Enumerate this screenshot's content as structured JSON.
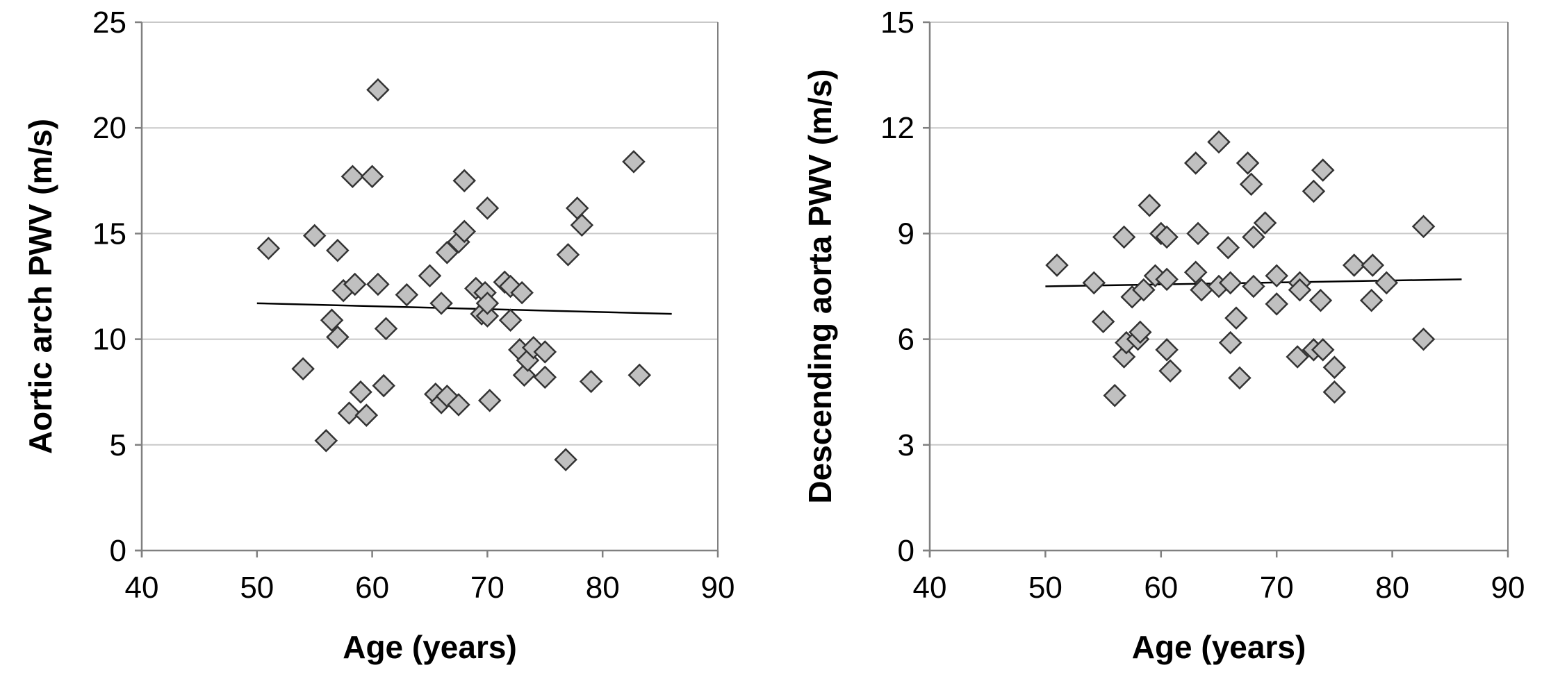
{
  "chart_data": [
    {
      "type": "scatter",
      "xlabel": "Age (years)",
      "ylabel": "Aortic arch PWV (m/s)",
      "xlim": [
        40,
        90
      ],
      "ylim": [
        0,
        25
      ],
      "xticks": [
        40,
        50,
        60,
        70,
        80,
        90
      ],
      "yticks": [
        0,
        5,
        10,
        15,
        20,
        25
      ],
      "grid": "horizontal",
      "colors": {
        "marker_fill": "#c0c0c0",
        "marker_edge": "#333333",
        "gridline": "#c8c8c8",
        "axis": "#808080",
        "trendline": "#000000"
      },
      "x": [
        51,
        54,
        55,
        56,
        56.5,
        57,
        57,
        57.5,
        58,
        58.3,
        58.5,
        59,
        59.5,
        60,
        60.5,
        60.5,
        61,
        61.2,
        63,
        65,
        65.5,
        66,
        66,
        66.5,
        66.5,
        67.5,
        67.5,
        68,
        68,
        69,
        69.5,
        69.8,
        70,
        70,
        70,
        70.2,
        71.5,
        72,
        72,
        72.8,
        73,
        73.2,
        73.5,
        74,
        75,
        75,
        76.8,
        77,
        77.8,
        78.2,
        79,
        82.7,
        83.2
      ],
      "y": [
        14.3,
        8.6,
        14.9,
        5.2,
        10.9,
        14.2,
        10.1,
        12.3,
        6.5,
        17.7,
        12.6,
        7.5,
        6.4,
        17.7,
        12.6,
        21.8,
        7.8,
        10.5,
        12.1,
        13.0,
        7.4,
        11.7,
        7.0,
        14.1,
        7.3,
        6.9,
        14.6,
        15.1,
        17.5,
        12.4,
        11.2,
        12.2,
        11.1,
        11.7,
        16.2,
        7.1,
        12.7,
        12.5,
        10.9,
        9.5,
        12.2,
        8.3,
        9.0,
        9.6,
        9.4,
        8.2,
        4.3,
        14.0,
        16.2,
        15.4,
        8.0,
        18.4,
        8.3
      ],
      "trendline": {
        "x": [
          50,
          86
        ],
        "y": [
          11.7,
          11.2
        ]
      }
    },
    {
      "type": "scatter",
      "xlabel": "Age (years)",
      "ylabel": "Descending aorta PWV (m/s)",
      "xlim": [
        40,
        90
      ],
      "ylim": [
        0,
        15
      ],
      "xticks": [
        40,
        50,
        60,
        70,
        80,
        90
      ],
      "yticks": [
        0,
        3,
        6,
        9,
        12,
        15
      ],
      "grid": "horizontal",
      "colors": {
        "marker_fill": "#c0c0c0",
        "marker_edge": "#333333",
        "gridline": "#c8c8c8",
        "axis": "#808080",
        "trendline": "#000000"
      },
      "x": [
        51,
        54.2,
        55,
        56,
        56.8,
        56.8,
        57,
        57.5,
        58,
        58.2,
        58.5,
        59,
        59.5,
        60,
        60.5,
        60.5,
        60.5,
        60.8,
        63,
        63,
        63.2,
        63.5,
        65,
        65,
        65.8,
        66,
        66,
        66.5,
        66.8,
        67.5,
        67.8,
        68,
        68,
        69,
        70,
        70,
        71.8,
        72,
        72,
        73.2,
        73.2,
        73.8,
        74,
        74,
        75,
        75,
        76.7,
        78.2,
        78.3,
        79.5,
        82.7,
        82.7
      ],
      "y": [
        8.1,
        7.6,
        6.5,
        4.4,
        8.9,
        5.5,
        5.9,
        7.2,
        6.0,
        6.2,
        7.4,
        9.8,
        7.8,
        9.0,
        8.9,
        7.7,
        5.7,
        5.1,
        11.0,
        7.9,
        9.0,
        7.4,
        11.6,
        7.5,
        8.6,
        7.6,
        5.9,
        6.6,
        4.9,
        11.0,
        10.4,
        8.9,
        7.5,
        9.3,
        7.8,
        7.0,
        5.5,
        7.6,
        7.4,
        10.2,
        5.7,
        7.1,
        10.8,
        5.7,
        4.5,
        5.2,
        8.1,
        7.1,
        8.1,
        7.6,
        9.2,
        6.0
      ],
      "trendline": {
        "x": [
          50,
          86
        ],
        "y": [
          7.5,
          7.7
        ]
      }
    }
  ]
}
